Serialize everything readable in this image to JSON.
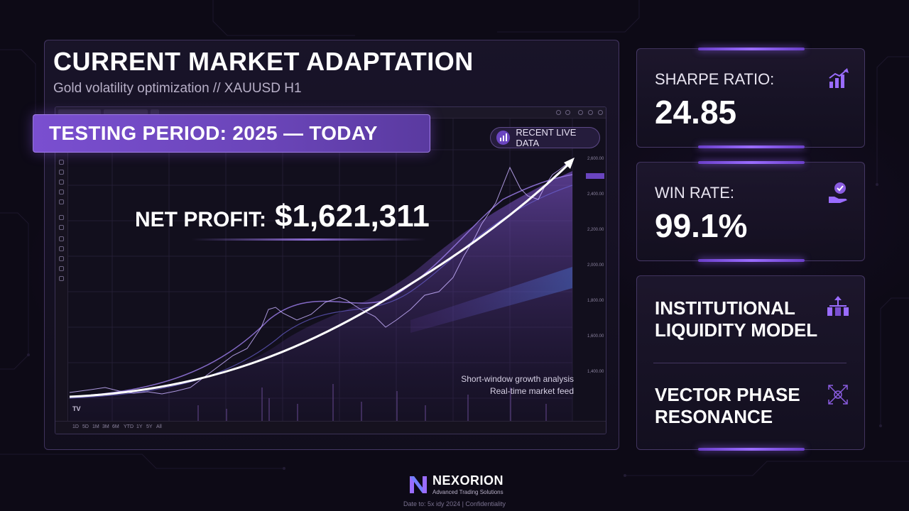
{
  "header": {
    "title": "CURRENT MARKET ADAPTATION",
    "subtitle": "Gold volatility optimization // XAUUSD H1"
  },
  "banner": {
    "testing_period": "TESTING PERIOD: 2025 — TODAY"
  },
  "badge": {
    "live_data": "RECENT LIVE DATA",
    "icon": "bar-chart-icon"
  },
  "profit": {
    "label": "NET PROFIT:",
    "value": "$1,621,311"
  },
  "chart_notes": {
    "line1": "Short-window growth analysis",
    "line2": "Real-time market feed"
  },
  "chart_window": {
    "timeframes": [
      "1D",
      "5D",
      "1M",
      "3M",
      "6M",
      "YTD",
      "1Y",
      "5Y",
      "All"
    ],
    "watermark": "TV"
  },
  "cards": {
    "sharpe": {
      "label": "SHARPE RATIO:",
      "value": "24.85",
      "icon": "growth-chart-icon"
    },
    "winrate": {
      "label": "WIN RATE:",
      "value": "99.1%",
      "icon": "hand-badge-icon"
    },
    "model1": {
      "line1": "INSTITUTIONAL",
      "line2": "LIQUIDITY MODEL",
      "icon": "network-icon"
    },
    "model2": {
      "line1": "VECTOR PHASE",
      "line2": "RESONANCE",
      "icon": "vector-cross-icon"
    }
  },
  "footer": {
    "brand": "NEXORION",
    "tagline": "Advanced Trading Solutions",
    "note": "Date to: 5x idy 2024 | Confidentiality"
  },
  "colors": {
    "accent": "#7a4fd0",
    "background": "#0d0a16",
    "glow": "#9a6cff"
  }
}
